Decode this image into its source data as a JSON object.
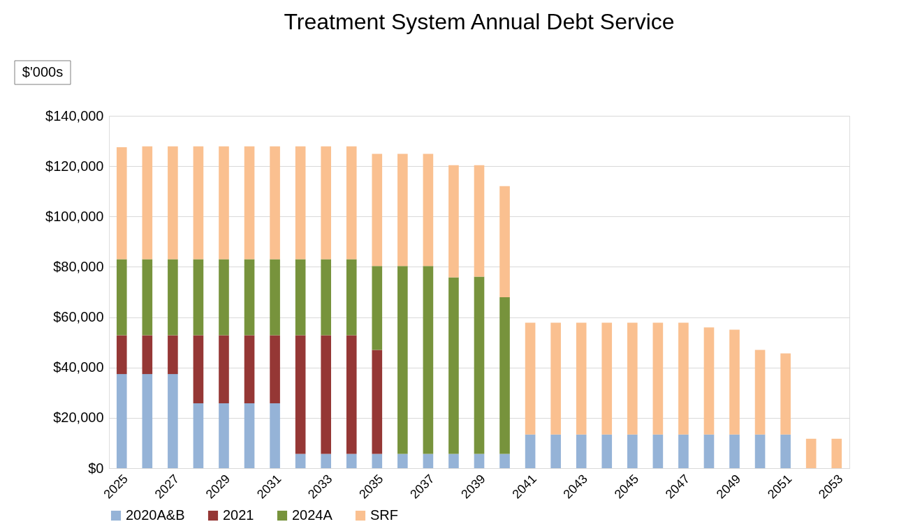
{
  "chart_data": {
    "type": "bar",
    "title": "Treatment System Annual Debt Service",
    "stacked": true,
    "grid": "y",
    "legend": "bottom",
    "annotations": [
      "$'000s"
    ],
    "categories": [
      "2025",
      null,
      "2027",
      null,
      "2029",
      null,
      "2031",
      null,
      "2033",
      null,
      "2035",
      null,
      "2037",
      null,
      "2039",
      null,
      "2041",
      null,
      "2043",
      null,
      "2045",
      null,
      "2047",
      null,
      "2049",
      null,
      "2051",
      null,
      "2053"
    ],
    "ylim": [
      0,
      140000
    ],
    "yticks": [
      {
        "value": 0,
        "label": "$0"
      },
      {
        "value": 20000,
        "label": "$20,000"
      },
      {
        "value": 40000,
        "label": "$40,000"
      },
      {
        "value": 60000,
        "label": "$60,000"
      },
      {
        "value": 80000,
        "label": "$80,000"
      },
      {
        "value": 100000,
        "label": "$100,000"
      },
      {
        "value": 120000,
        "label": "$120,000"
      },
      {
        "value": 140000,
        "label": "$140,000"
      }
    ],
    "series": [
      {
        "name": "2020A&B",
        "color": "#95b3d7",
        "values": [
          37400,
          37400,
          37400,
          25800,
          25800,
          25800,
          25800,
          5700,
          5700,
          5700,
          5700,
          5700,
          5700,
          5700,
          5700,
          5700,
          13400,
          13400,
          13400,
          13400,
          13400,
          13400,
          13400,
          13400,
          13400,
          13400,
          13400,
          null,
          null
        ]
      },
      {
        "name": "2021",
        "color": "#953735",
        "values": [
          15400,
          15400,
          15400,
          27000,
          27000,
          27000,
          27000,
          47100,
          47100,
          47100,
          41300,
          null,
          null,
          null,
          null,
          null,
          null,
          null,
          null,
          null,
          null,
          null,
          null,
          null,
          null,
          null,
          null,
          null,
          null
        ]
      },
      {
        "name": "2024A",
        "color": "#77933c",
        "values": [
          30200,
          30200,
          30200,
          30200,
          30200,
          30200,
          30200,
          30200,
          30200,
          30200,
          33300,
          74600,
          74600,
          70100,
          70400,
          62200,
          null,
          null,
          null,
          null,
          null,
          null,
          null,
          null,
          null,
          null,
          null,
          null,
          null
        ]
      },
      {
        "name": "SRF",
        "color": "#fac090",
        "values": [
          44500,
          44900,
          44900,
          44900,
          44900,
          44900,
          44900,
          44900,
          44900,
          44900,
          44600,
          44600,
          44600,
          44600,
          44300,
          44200,
          44400,
          44400,
          44400,
          44400,
          44400,
          44400,
          44400,
          42500,
          41600,
          33600,
          32200,
          11700,
          11700
        ]
      }
    ]
  }
}
